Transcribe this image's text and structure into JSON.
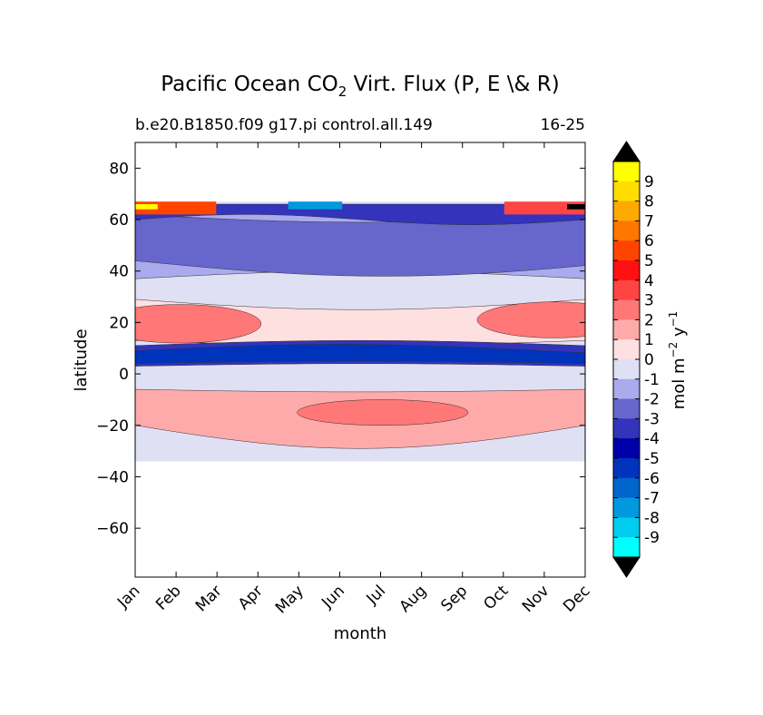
{
  "chart_data": {
    "type": "heatmap",
    "title_main": "Pacific Ocean CO",
    "title_sub2": "2",
    "title_rest": " Virt. Flux (P, E \\& R)",
    "case_label": "b.e20.B1850.f09 g17.pi control.all.149",
    "years_label": "16-25",
    "xlabel": "month",
    "ylabel": "latitude",
    "x_categories": [
      "Jan",
      "Feb",
      "Mar",
      "Apr",
      "May",
      "Jun",
      "Jul",
      "Aug",
      "Sep",
      "Oct",
      "Nov",
      "Dec"
    ],
    "yticks": [
      80,
      60,
      40,
      20,
      0,
      -20,
      -40,
      -60
    ],
    "yticklabels": [
      "80",
      "60",
      "40",
      "20",
      "0",
      "−20",
      "−40",
      "−60"
    ],
    "ylim": [
      -79,
      90
    ],
    "data_lat_range": [
      -34,
      67
    ],
    "colorbar": {
      "levels": [
        -9,
        -8,
        -7,
        -6,
        -5,
        -4,
        -3,
        -2,
        -1,
        0,
        1,
        2,
        3,
        4,
        5,
        6,
        7,
        8,
        9
      ],
      "labels": [
        "-9",
        "-8",
        "-7",
        "-6",
        "-5",
        "-4",
        "-3",
        "-2",
        "-1",
        "0",
        "1",
        "2",
        "3",
        "4",
        "5",
        "6",
        "7",
        "8",
        "9"
      ],
      "colors": [
        "#00ffff",
        "#00ccee",
        "#0099dd",
        "#0066cc",
        "#0033bb",
        "#0000aa",
        "#3333bb",
        "#6666cc",
        "#aaaaee",
        "#e0e0f5",
        "#ffe0e0",
        "#ffaaaa",
        "#ff7777",
        "#ff4444",
        "#ff1111",
        "#ff4400",
        "#ff7700",
        "#ffaa00",
        "#ffdd00",
        "#ffff00"
      ],
      "extend_colors": [
        "#000000",
        "#000000"
      ],
      "unit_base": "mol m",
      "unit_exp1": "−2",
      "unit_mid": " y",
      "unit_exp2": "−1"
    },
    "regions": [
      {
        "name": "background_positive",
        "level": 0,
        "lat_range": [
          -34,
          67
        ]
      },
      {
        "name": "north_negative_band",
        "level": -2,
        "lat_range": [
          42,
          60
        ]
      },
      {
        "name": "north_weak_negative",
        "level": -1,
        "lat_range": [
          36,
          64
        ]
      },
      {
        "name": "north_subtropical_positive",
        "level": 2,
        "lat_range": [
          12,
          27
        ]
      },
      {
        "name": "north_subtropical_core",
        "level": 3,
        "lat_range": [
          15,
          24
        ]
      },
      {
        "name": "equatorial_negative",
        "level": -5,
        "lat_range": [
          2,
          12
        ]
      },
      {
        "name": "south_subtropical_positive",
        "level": 2,
        "lat_range": [
          -30,
          -8
        ]
      },
      {
        "name": "south_subtropical_core",
        "level": 3,
        "lat_range": [
          -20,
          -11
        ]
      },
      {
        "name": "high_lat_north_edge",
        "level": 9,
        "lat_range": [
          62,
          67
        ]
      }
    ]
  }
}
